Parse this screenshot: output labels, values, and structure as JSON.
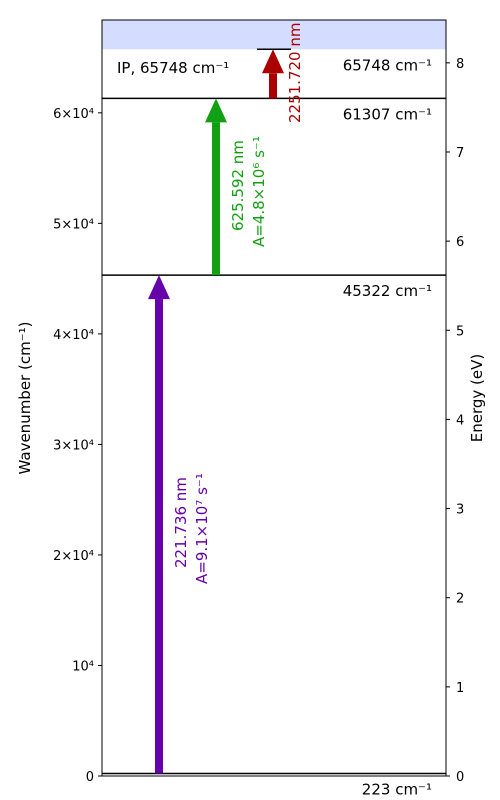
{
  "axes": {
    "left_label": "Wavenumber (cm⁻¹)",
    "right_label": "Energy (eV)",
    "left_ticks": [
      {
        "value": 0,
        "label": "0"
      },
      {
        "value": 10000,
        "label": "10⁴"
      },
      {
        "value": 20000,
        "label": "2×10⁴"
      },
      {
        "value": 30000,
        "label": "3×10⁴"
      },
      {
        "value": 40000,
        "label": "4×10⁴"
      },
      {
        "value": 50000,
        "label": "5×10⁴"
      },
      {
        "value": 60000,
        "label": "6×10⁴"
      }
    ],
    "right_ticks": [
      {
        "value": 0,
        "label": "0"
      },
      {
        "value": 1,
        "label": "1"
      },
      {
        "value": 2,
        "label": "2"
      },
      {
        "value": 3,
        "label": "3"
      },
      {
        "value": 4,
        "label": "4"
      },
      {
        "value": 5,
        "label": "5"
      },
      {
        "value": 6,
        "label": "6"
      },
      {
        "value": 7,
        "label": "7"
      },
      {
        "value": 8,
        "label": "8"
      }
    ]
  },
  "ionization": {
    "label": "IP, 65748 cm⁻¹",
    "value": 65748
  },
  "levels": [
    {
      "value": 223,
      "label": "223 cm⁻¹"
    },
    {
      "value": 45322,
      "label": "45322 cm⁻¹"
    },
    {
      "value": 61307,
      "label": "61307 cm⁻¹"
    },
    {
      "value": 65748,
      "label": "65748 cm⁻¹",
      "short": true
    }
  ],
  "transitions": [
    {
      "from": 223,
      "to": 45322,
      "wavelength": "221.736 nm",
      "rate": "A=9.1×10⁷ s⁻¹",
      "color": "#6600aa"
    },
    {
      "from": 45322,
      "to": 61307,
      "wavelength": "625.592 nm",
      "rate": "A=4.8×10⁶ s⁻¹",
      "color": "#11a011"
    },
    {
      "from": 61307,
      "to": 65748,
      "wavelength": "2251.720 nm",
      "rate": "",
      "color": "#aa0000"
    }
  ],
  "colors": {
    "ionization_band": "#d4dcff",
    "axis": "#000000"
  }
}
